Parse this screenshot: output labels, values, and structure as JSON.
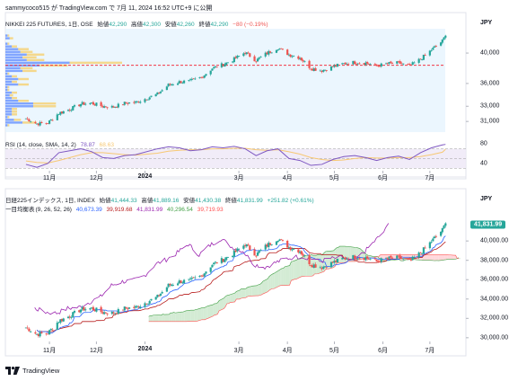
{
  "header": {
    "published": "sammycoco515 が TradingView.com で 7月 11, 2024 16:52 UTC+9 に公開"
  },
  "colors": {
    "up": "#26a69a",
    "down": "#ef5350",
    "rsi": "#7e57c2",
    "rsi_ma": "#f7c873",
    "conversion": "#2962ff",
    "base": "#b71c1c",
    "lagging": "#9c27b0",
    "lead_a": "#43a047",
    "lead_b": "#ff5252",
    "poc": "#f23645"
  },
  "chart_data": [
    {
      "type": "candlestick",
      "title": "NIKKEI 225 FUTURES, 1日, OSE",
      "ohlc_text": {
        "o_label": "始値",
        "o": "42,290",
        "h_label": "高値",
        "h": "42,300",
        "l_label": "安値",
        "l": "42,260",
        "c_label": "終値",
        "c": "42,290",
        "change": "−80 (−0.19%)"
      },
      "currency": "JPY",
      "x_ticks": [
        "11月",
        "12月",
        "2024",
        "3月",
        "4月",
        "5月",
        "6月",
        "7月"
      ],
      "y_ticks": [
        40000,
        36000,
        33000,
        31000
      ],
      "y_range": [
        29600,
        43200
      ],
      "point_of_control": 38400,
      "volume_profile": true,
      "close_series": [
        {
          "date": "2023-10-17",
          "close": 31400
        },
        {
          "date": "2023-10-24",
          "close": 30700
        },
        {
          "date": "2023-10-31",
          "close": 30800
        },
        {
          "date": "2023-11-07",
          "close": 32100
        },
        {
          "date": "2023-11-14",
          "close": 32600
        },
        {
          "date": "2023-11-21",
          "close": 33300
        },
        {
          "date": "2023-11-28",
          "close": 33400
        },
        {
          "date": "2023-12-05",
          "close": 33000
        },
        {
          "date": "2023-12-12",
          "close": 32900
        },
        {
          "date": "2023-12-19",
          "close": 33400
        },
        {
          "date": "2023-12-26",
          "close": 33500
        },
        {
          "date": "2024-01-09",
          "close": 34600
        },
        {
          "date": "2024-01-16",
          "close": 35800
        },
        {
          "date": "2024-01-23",
          "close": 36200
        },
        {
          "date": "2024-01-30",
          "close": 36300
        },
        {
          "date": "2024-02-06",
          "close": 36800
        },
        {
          "date": "2024-02-13",
          "close": 38000
        },
        {
          "date": "2024-02-20",
          "close": 38500
        },
        {
          "date": "2024-02-27",
          "close": 39200
        },
        {
          "date": "2024-03-05",
          "close": 40100
        },
        {
          "date": "2024-03-12",
          "close": 39000
        },
        {
          "date": "2024-03-19",
          "close": 40000
        },
        {
          "date": "2024-03-26",
          "close": 40700
        },
        {
          "date": "2024-04-02",
          "close": 39800
        },
        {
          "date": "2024-04-09",
          "close": 39400
        },
        {
          "date": "2024-04-16",
          "close": 38000
        },
        {
          "date": "2024-04-23",
          "close": 37700
        },
        {
          "date": "2024-04-30",
          "close": 38200
        },
        {
          "date": "2024-05-07",
          "close": 38600
        },
        {
          "date": "2024-05-14",
          "close": 38800
        },
        {
          "date": "2024-05-21",
          "close": 38700
        },
        {
          "date": "2024-05-28",
          "close": 38300
        },
        {
          "date": "2024-06-04",
          "close": 38600
        },
        {
          "date": "2024-06-11",
          "close": 38700
        },
        {
          "date": "2024-06-18",
          "close": 38300
        },
        {
          "date": "2024-06-25",
          "close": 39200
        },
        {
          "date": "2024-07-02",
          "close": 40400
        },
        {
          "date": "2024-07-09",
          "close": 41600
        },
        {
          "date": "2024-07-11",
          "close": 42290
        }
      ]
    },
    {
      "type": "line",
      "title": "RSI (14, close, SMA, 14, 2)",
      "rsi_value": "78.87",
      "ma_value": "68.63",
      "y_ticks": [
        80,
        40
      ],
      "y_range": [
        25,
        95
      ],
      "band": [
        30,
        70
      ],
      "series": [
        {
          "values": [
            38,
            32,
            40,
            62,
            66,
            70,
            64,
            52,
            50,
            56,
            58,
            70,
            74,
            72,
            66,
            68,
            74,
            72,
            75,
            70,
            56,
            66,
            70,
            50,
            46,
            36,
            38,
            48,
            54,
            56,
            52,
            46,
            52,
            55,
            48,
            62,
            72,
            78,
            79
          ]
        },
        {
          "values": [
            45,
            42,
            41,
            46,
            52,
            58,
            62,
            62,
            60,
            58,
            57,
            61,
            65,
            67,
            68,
            68,
            70,
            70,
            71,
            71,
            68,
            67,
            68,
            64,
            59,
            52,
            48,
            46,
            47,
            50,
            52,
            51,
            51,
            52,
            52,
            54,
            58,
            63,
            69
          ]
        }
      ]
    },
    {
      "type": "candlestick",
      "title": "日経225インデックス, 1日, INDEX",
      "ohlc_text": {
        "o_label": "始値",
        "o": "41,444.33",
        "h_label": "高値",
        "h": "41,889.16",
        "l_label": "安値",
        "l": "41,430.38",
        "c_label": "終値",
        "c": "41,831.99",
        "change": "+251.82 (+0.61%)"
      },
      "last_price": "41,831.99",
      "currency": "JPY",
      "x_ticks": [
        "11月",
        "12月",
        "2024",
        "3月",
        "4月",
        "5月",
        "6月",
        "7月"
      ],
      "y_ticks": [
        40000,
        38000,
        36000,
        34000,
        32000,
        30000
      ],
      "y_tick_labels": [
        "40,000.00",
        "38,000.00",
        "36,000.00",
        "34,000.00",
        "32,000.00",
        "30,000.00"
      ],
      "y_range": [
        29800,
        42800
      ],
      "indicator": {
        "name": "一目均衡表",
        "params": "(9, 26, 52, 26)",
        "conversion": "40,673.39",
        "base": "39,919.68",
        "lagging": "41,831.99",
        "lead_a": "40,296.54",
        "lead_b": "39,719.93"
      }
    }
  ],
  "footer": {
    "brand": "TradingView"
  }
}
